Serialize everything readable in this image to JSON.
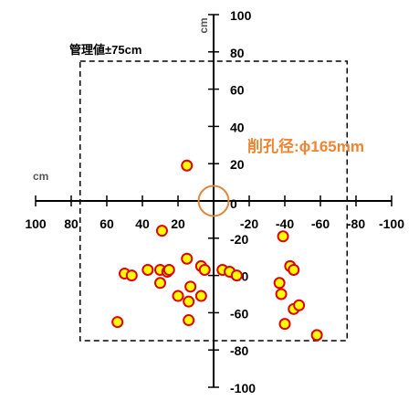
{
  "chart_data": {
    "type": "scatter",
    "x_axis": {
      "reversed": true,
      "range": [
        100,
        -100
      ],
      "ticks": [
        100,
        80,
        60,
        40,
        20,
        0,
        -20,
        -40,
        -60,
        -80,
        -100
      ],
      "tick_labels": [
        "100",
        "80",
        "60",
        "40",
        "20",
        "0",
        "-20",
        "-40",
        "-60",
        "-80",
        "-100"
      ],
      "unit": "cm"
    },
    "y_axis": {
      "range": [
        -100,
        100
      ],
      "ticks": [
        100,
        80,
        60,
        40,
        20,
        0,
        -20,
        -40,
        -60,
        -80,
        -100
      ],
      "tick_labels": [
        "100",
        "80",
        "60",
        "40",
        "20",
        "0",
        "-20",
        "-40",
        "-60",
        "-80",
        "-100"
      ],
      "unit": "cm"
    },
    "grid": false,
    "management_label": "管理値±75cm",
    "management_limit": 75,
    "bore_label": "削孔径:ϕ165mm",
    "bore_radius": 8.25,
    "points": [
      {
        "x": 15,
        "y": 19
      },
      {
        "x": 29,
        "y": -16
      },
      {
        "x": 54,
        "y": -65
      },
      {
        "x": 50,
        "y": -39
      },
      {
        "x": 46,
        "y": -40
      },
      {
        "x": 37,
        "y": -37
      },
      {
        "x": 30,
        "y": -44
      },
      {
        "x": 30,
        "y": -37
      },
      {
        "x": 26,
        "y": -38
      },
      {
        "x": 25,
        "y": -37
      },
      {
        "x": 20,
        "y": -51
      },
      {
        "x": 15,
        "y": -31
      },
      {
        "x": 14,
        "y": -54
      },
      {
        "x": 13,
        "y": -46
      },
      {
        "x": 14,
        "y": -64
      },
      {
        "x": 7,
        "y": -35
      },
      {
        "x": 5,
        "y": -37
      },
      {
        "x": 7,
        "y": -51
      },
      {
        "x": -5,
        "y": -37
      },
      {
        "x": -9,
        "y": -38
      },
      {
        "x": -13,
        "y": -40
      },
      {
        "x": -39,
        "y": -19
      },
      {
        "x": -43,
        "y": -35
      },
      {
        "x": -45,
        "y": -37
      },
      {
        "x": -37,
        "y": -44
      },
      {
        "x": -38,
        "y": -50
      },
      {
        "x": -45,
        "y": -58
      },
      {
        "x": -48,
        "y": -56
      },
      {
        "x": -40,
        "y": -66
      },
      {
        "x": -58,
        "y": -72
      }
    ],
    "colors": {
      "point_fill": "#ffff00",
      "point_stroke": "#e00000",
      "bore_circle": "#e2883a",
      "bore_text": "#ee8533",
      "axis": "#000000",
      "limit_box": "#000000"
    }
  }
}
